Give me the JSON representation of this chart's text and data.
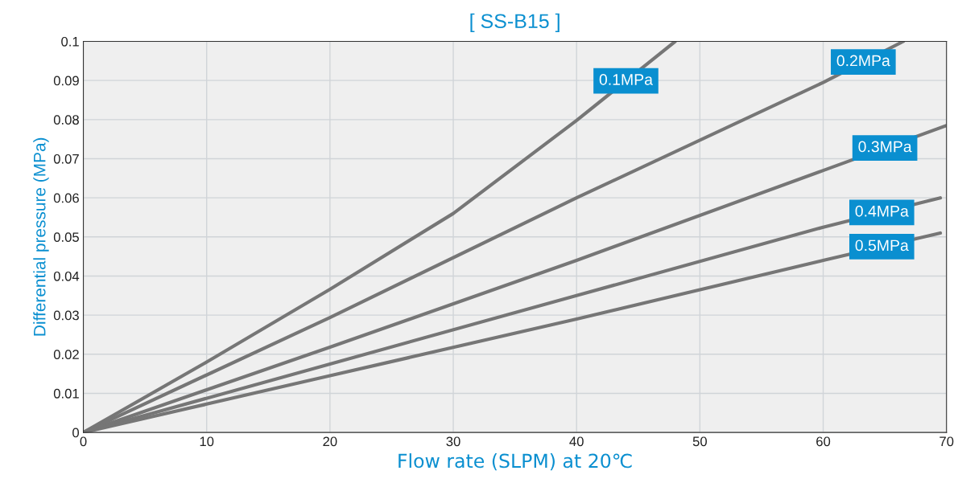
{
  "chart_data": {
    "type": "line",
    "title": "[ SS-B15 ]",
    "xlabel": "Flow rate (SLPM) at 20℃",
    "ylabel": "Differential pressure (MPa)",
    "xlim": [
      0,
      70
    ],
    "xticks": [
      0,
      10,
      20,
      30,
      40,
      50,
      60,
      70
    ],
    "ylim": [
      0,
      0.1
    ],
    "yticks": [
      0,
      0.01,
      0.02,
      0.03,
      0.04,
      0.05,
      0.06,
      0.07,
      0.08,
      0.09,
      0.1
    ],
    "grid": true,
    "legend": false,
    "marker": "none",
    "line_style": "solid",
    "series": [
      {
        "name": "0.1MPa",
        "color": "#767676",
        "x": [
          0,
          10,
          20,
          30,
          40,
          48
        ],
        "values": [
          0,
          0.018,
          0.0366,
          0.056,
          0.0798,
          0.1
        ]
      },
      {
        "name": "0.2MPa",
        "color": "#767676",
        "x": [
          0,
          20,
          40,
          60,
          66.5
        ],
        "values": [
          0,
          0.0294,
          0.06,
          0.0895,
          0.1
        ]
      },
      {
        "name": "0.3MPa",
        "color": "#767676",
        "x": [
          0,
          20,
          40,
          60,
          70
        ],
        "values": [
          0,
          0.0218,
          0.044,
          0.067,
          0.0785
        ]
      },
      {
        "name": "0.4MPa",
        "color": "#767676",
        "x": [
          0,
          20,
          40,
          60,
          69.5
        ],
        "values": [
          0,
          0.0175,
          0.035,
          0.0525,
          0.06
        ]
      },
      {
        "name": "0.5MPa",
        "color": "#767676",
        "x": [
          0,
          20,
          40,
          60,
          69.5
        ],
        "values": [
          0,
          0.0145,
          0.029,
          0.044,
          0.051
        ]
      }
    ]
  }
}
